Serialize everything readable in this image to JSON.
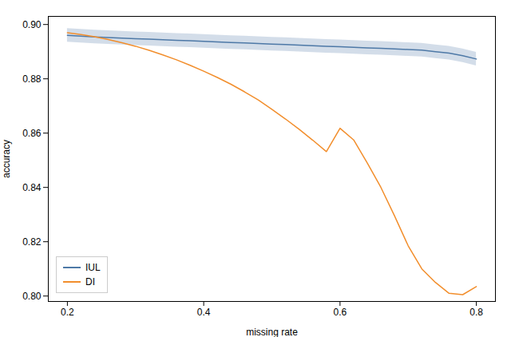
{
  "chart_data": {
    "type": "line",
    "xlabel": "missing rate",
    "ylabel": "accuracy",
    "x": [
      0.2,
      0.22,
      0.24,
      0.26,
      0.28,
      0.3,
      0.32,
      0.34,
      0.36,
      0.38,
      0.4,
      0.42,
      0.44,
      0.46,
      0.48,
      0.5,
      0.52,
      0.54,
      0.56,
      0.58,
      0.6,
      0.62,
      0.64,
      0.66,
      0.68,
      0.7,
      0.72,
      0.74,
      0.76,
      0.78,
      0.8
    ],
    "series": [
      {
        "name": "IUL",
        "values": [
          0.896,
          0.8957,
          0.8954,
          0.8952,
          0.895,
          0.8948,
          0.8946,
          0.8944,
          0.8942,
          0.894,
          0.8938,
          0.8936,
          0.8934,
          0.8932,
          0.893,
          0.8928,
          0.8926,
          0.8924,
          0.8922,
          0.892,
          0.8918,
          0.8916,
          0.8914,
          0.8912,
          0.891,
          0.8908,
          0.8906,
          0.89,
          0.8895,
          0.8885,
          0.8873
        ],
        "lower": [
          0.8935,
          0.8932,
          0.8929,
          0.8927,
          0.8925,
          0.8923,
          0.8921,
          0.8919,
          0.8917,
          0.8915,
          0.8913,
          0.8911,
          0.8909,
          0.8907,
          0.8905,
          0.8903,
          0.8901,
          0.8899,
          0.8897,
          0.8895,
          0.8893,
          0.8891,
          0.8889,
          0.8887,
          0.8885,
          0.8883,
          0.8881,
          0.8875,
          0.887,
          0.886,
          0.8848
        ],
        "upper": [
          0.8985,
          0.8982,
          0.8979,
          0.8977,
          0.8975,
          0.8973,
          0.8971,
          0.8969,
          0.8967,
          0.8965,
          0.8963,
          0.8961,
          0.8959,
          0.8957,
          0.8955,
          0.8953,
          0.8951,
          0.8949,
          0.8947,
          0.8945,
          0.8943,
          0.8941,
          0.8939,
          0.8937,
          0.8935,
          0.8933,
          0.8931,
          0.8925,
          0.892,
          0.891,
          0.8898
        ]
      },
      {
        "name": "DI",
        "values": [
          0.897,
          0.8963,
          0.8955,
          0.8945,
          0.8933,
          0.892,
          0.8905,
          0.8888,
          0.887,
          0.885,
          0.8828,
          0.8805,
          0.878,
          0.8752,
          0.8722,
          0.8688,
          0.8652,
          0.8614,
          0.8574,
          0.8532,
          0.8618,
          0.8575,
          0.849,
          0.84,
          0.8295,
          0.8185,
          0.81,
          0.805,
          0.801,
          0.8005,
          0.8035
        ]
      }
    ],
    "xlim": [
      0.172,
      0.828
    ],
    "ylim": [
      0.798,
      0.903
    ],
    "xticks": [
      0.2,
      0.4,
      0.6,
      0.8
    ],
    "yticks": [
      {
        "value": 0.8,
        "label": "0.80"
      },
      0.82,
      0.84,
      0.86,
      0.88,
      {
        "value": 0.9,
        "label": "0.90"
      }
    ],
    "grid": false,
    "legend": "lower left"
  }
}
